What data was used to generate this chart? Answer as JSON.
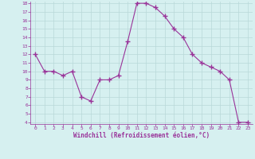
{
  "hours": [
    0,
    1,
    2,
    3,
    4,
    5,
    6,
    7,
    8,
    9,
    10,
    11,
    12,
    13,
    14,
    15,
    16,
    17,
    18,
    19,
    20,
    21,
    22,
    23
  ],
  "values": [
    12,
    10,
    10,
    9.5,
    10,
    7,
    6.5,
    9,
    9,
    9.5,
    13.5,
    18,
    18,
    17.5,
    16.5,
    15,
    14,
    12,
    11,
    10.5,
    10,
    9,
    4,
    4
  ],
  "line_color": "#993399",
  "marker": "+",
  "marker_size": 4,
  "bg_color": "#d6f0f0",
  "grid_color": "#b8d8d8",
  "xlabel": "Windchill (Refroidissement éolien,°C)",
  "xlabel_color": "#993399",
  "tick_color": "#993399",
  "ylim": [
    4,
    18
  ],
  "xlim": [
    -0.5,
    23.5
  ],
  "yticks": [
    4,
    5,
    6,
    7,
    8,
    9,
    10,
    11,
    12,
    13,
    14,
    15,
    16,
    17,
    18
  ],
  "xticks": [
    0,
    1,
    2,
    3,
    4,
    5,
    6,
    7,
    8,
    9,
    10,
    11,
    12,
    13,
    14,
    15,
    16,
    17,
    18,
    19,
    20,
    21,
    22,
    23
  ]
}
